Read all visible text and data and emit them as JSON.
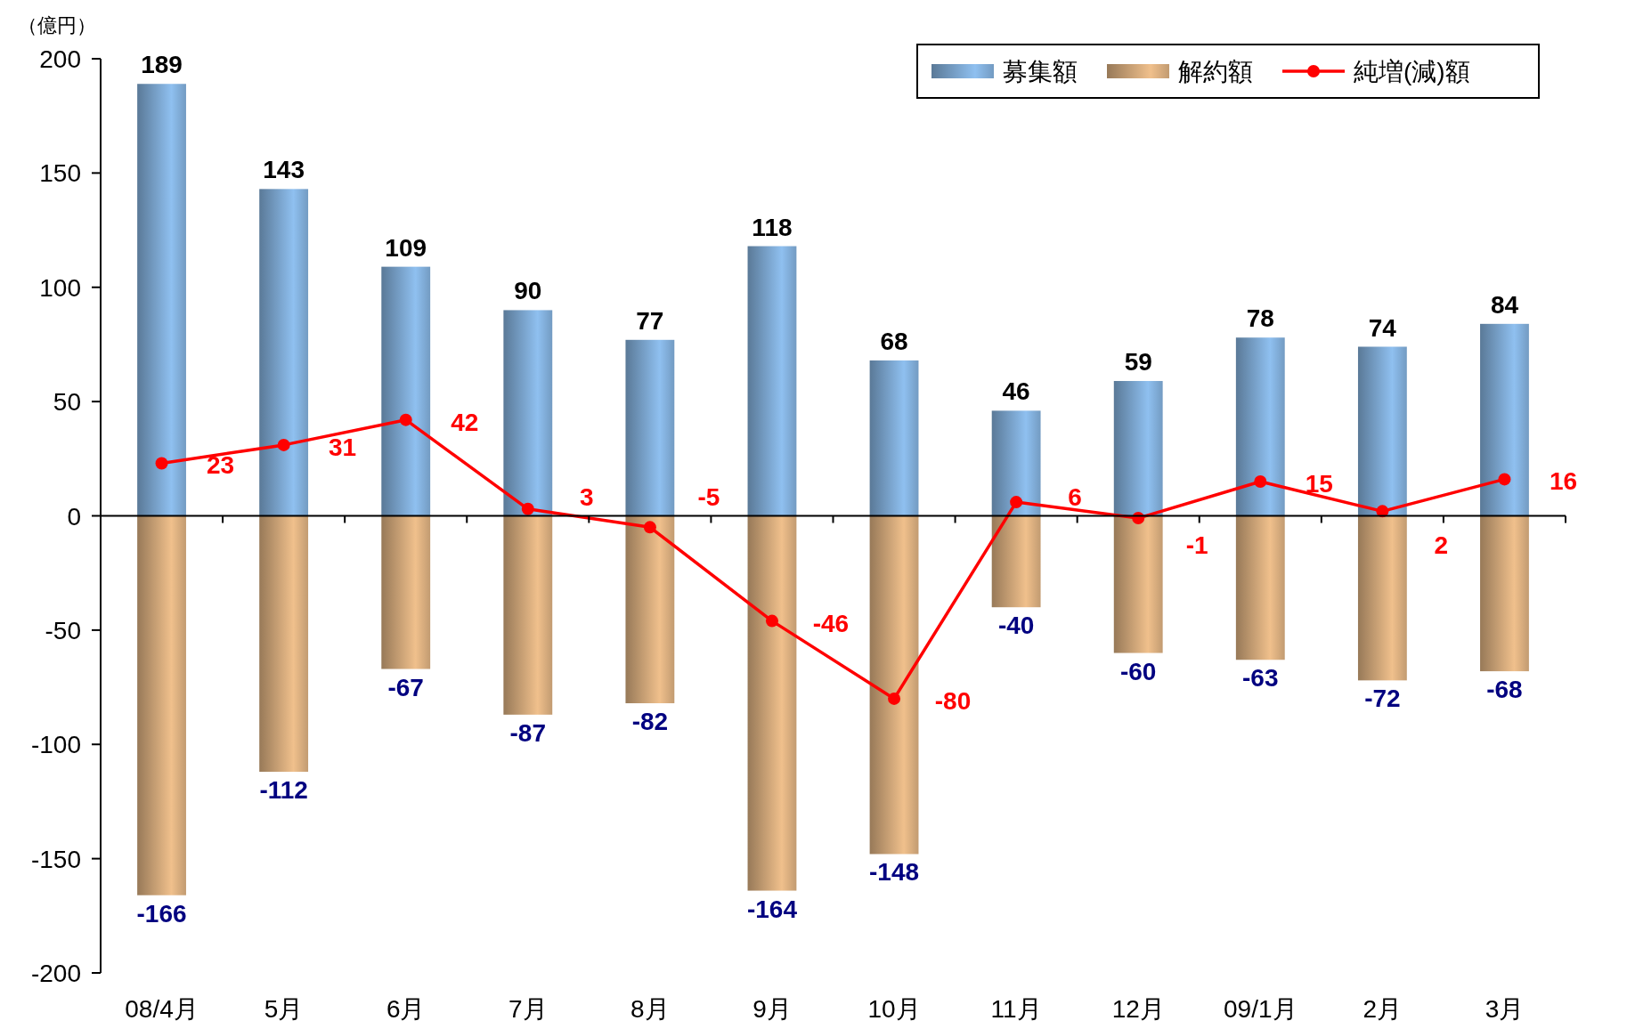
{
  "chart_data": {
    "type": "bar",
    "ylabel": "（億円）",
    "categories": [
      "08/4月",
      "5月",
      "6月",
      "7月",
      "8月",
      "9月",
      "10月",
      "11月",
      "12月",
      "09/1月",
      "2月",
      "3月"
    ],
    "series": [
      {
        "name": "募集額",
        "color": "#8fc0f0",
        "values": [
          189,
          143,
          109,
          90,
          77,
          118,
          68,
          46,
          59,
          78,
          74,
          84
        ]
      },
      {
        "name": "解約額",
        "color": "#f0c08c",
        "values": [
          -166,
          -112,
          -67,
          -87,
          -82,
          -164,
          -148,
          -40,
          -60,
          -63,
          -72,
          -68
        ]
      },
      {
        "name": "純増(減)額",
        "type": "line",
        "color": "#ff0000",
        "marker": "circle",
        "values": [
          23,
          31,
          42,
          3,
          -5,
          -46,
          -80,
          6,
          -1,
          15,
          2,
          16
        ]
      }
    ],
    "ylim": [
      -200,
      200
    ],
    "yticks": [
      -200,
      -150,
      -100,
      -50,
      0,
      50,
      100,
      150,
      200
    ],
    "stacked": true,
    "data_labels": true,
    "legend": "top right"
  }
}
